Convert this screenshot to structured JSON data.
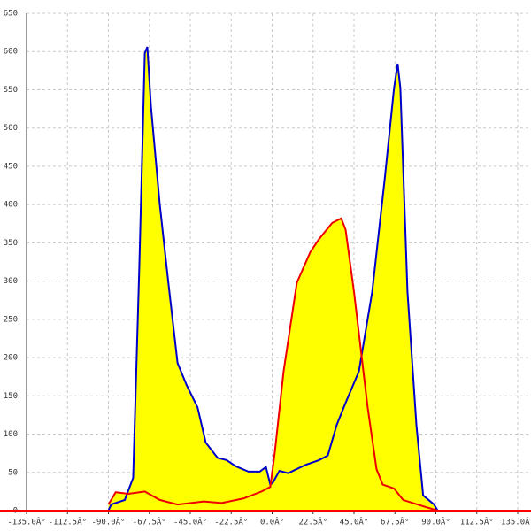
{
  "chart_data": {
    "type": "area",
    "fill": "#ffff00",
    "axis_color": "#ff0000",
    "grid": true,
    "xlim": [
      -135,
      135
    ],
    "ylim": [
      0,
      650
    ],
    "xticks": [
      {
        "value": -135,
        "label": "-135.0Â°"
      },
      {
        "value": -112.5,
        "label": "-112.5Â°"
      },
      {
        "value": -90,
        "label": "-90.0Â°"
      },
      {
        "value": -67.5,
        "label": "-67.5Â°"
      },
      {
        "value": -45,
        "label": "-45.0Â°"
      },
      {
        "value": -22.5,
        "label": "-22.5Â°"
      },
      {
        "value": 0,
        "label": "0.0Â°"
      },
      {
        "value": 22.5,
        "label": "22.5Â°"
      },
      {
        "value": 45,
        "label": "45.0Â°"
      },
      {
        "value": 67.5,
        "label": "67.5Â°"
      },
      {
        "value": 90,
        "label": "90.0Â°"
      },
      {
        "value": 112.5,
        "label": "112.5Â°"
      },
      {
        "value": 135,
        "label": "135.0Â°"
      }
    ],
    "yticks": [
      0,
      50,
      100,
      150,
      200,
      250,
      300,
      350,
      400,
      450,
      500,
      550,
      600,
      650
    ],
    "series": [
      {
        "color": "#0000cc",
        "x": [
          -90,
          -88.5,
          -81,
          -76.4,
          -73,
          -70,
          -68.6,
          -66.6,
          -61.8,
          -57,
          -52,
          -47,
          -41,
          -36.5,
          -30,
          -25,
          -20,
          -13,
          -6.8,
          -3.4,
          -1,
          0.5,
          4,
          8.8,
          18.5,
          25.8,
          30.6,
          35.5,
          40.4,
          47.7,
          55,
          62,
          67,
          69,
          70.5,
          74.4,
          79.3,
          83,
          89,
          91
        ],
        "values": [
          0,
          8,
          14,
          43,
          320,
          598,
          606,
          528,
          401,
          297,
          193,
          164,
          135,
          89,
          69,
          66,
          58,
          51,
          51,
          57,
          34,
          37,
          52,
          49,
          60,
          66,
          72,
          112,
          141,
          182,
          286,
          436,
          552,
          584,
          552,
          286,
          112,
          20,
          8,
          0
        ]
      },
      {
        "color": "#ee0000",
        "x": [
          -90,
          -86,
          -79,
          -70,
          -61.8,
          -52,
          -37.5,
          -27.7,
          -15.6,
          -5.8,
          -1,
          1.5,
          6.3,
          13.6,
          21,
          25.8,
          33,
          38,
          40.4,
          45,
          52.5,
          57.4,
          60.8,
          67,
          72,
          84,
          91
        ],
        "values": [
          8,
          24,
          22,
          25,
          14,
          8,
          12,
          10,
          16,
          25,
          31,
          77,
          182,
          298,
          338,
          355,
          376,
          382,
          367,
          286,
          135,
          54,
          34,
          29,
          14,
          5,
          0
        ]
      }
    ]
  }
}
